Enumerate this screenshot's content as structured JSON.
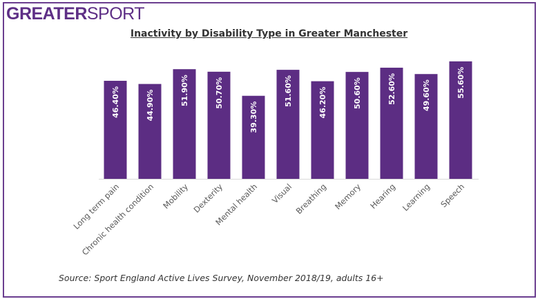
{
  "logo": {
    "text_bold": "GREATER",
    "text_light": "SPORT"
  },
  "chart_data": {
    "type": "bar",
    "title": "Inactivity by Disability Type in Greater Manchester",
    "categories": [
      "Long term pain",
      "Chronic health condition",
      "Mobility",
      "Dexterity",
      "Mental health",
      "Visual",
      "Breathing",
      "Memory",
      "Hearing",
      "Learning",
      "Speech"
    ],
    "values": [
      46.4,
      44.9,
      51.9,
      50.7,
      39.3,
      51.6,
      46.2,
      50.6,
      52.6,
      49.6,
      55.6
    ],
    "data_labels": [
      "46.40%",
      "44.90%",
      "51.90%",
      "50.70%",
      "39.30%",
      "51.60%",
      "46.20%",
      "50.60%",
      "52.60%",
      "49.60%",
      "55.60%"
    ],
    "xlabel": "",
    "ylabel": "",
    "grid": false,
    "legend": "none",
    "bar_color": "#5c2d83"
  },
  "source": "Source: Sport England Active Lives Survey, November 2018/19, adults 16+"
}
